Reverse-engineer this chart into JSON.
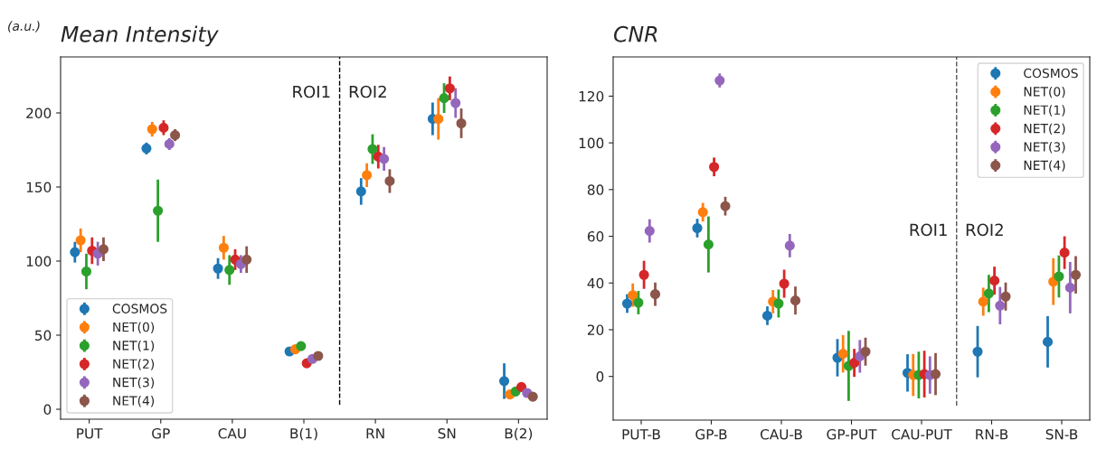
{
  "chart_data": [
    {
      "type": "scatter",
      "title": "Mean Intensity",
      "ylabel": "(a.u.)",
      "categories": [
        "PUT",
        "GP",
        "CAU",
        "B(1)",
        "RN",
        "SN",
        "B(2)"
      ],
      "ylim": [
        -6.7,
        237.8
      ],
      "yticks": [
        0,
        50,
        100,
        150,
        200
      ],
      "marker": "circle",
      "legend": "bottom left",
      "grid": false,
      "annotations": [
        "ROI1",
        "ROI2"
      ],
      "series": [
        {
          "name": "COSMOS",
          "color": "#1f77b4",
          "values": [
            106,
            176,
            95,
            39,
            147,
            196,
            19
          ],
          "errors": [
            7,
            4,
            7,
            2,
            9,
            11,
            12
          ]
        },
        {
          "name": "NET(0)",
          "color": "#ff7f0e",
          "values": [
            114,
            189,
            109,
            40.5,
            158,
            196,
            10
          ],
          "errors": [
            8,
            5,
            8,
            2,
            8,
            14,
            2
          ]
        },
        {
          "name": "NET(1)",
          "color": "#2ca02c",
          "values": [
            93,
            134,
            94,
            42.6,
            175.6,
            210,
            12
          ],
          "errors": [
            12,
            21,
            10,
            2,
            10,
            10,
            2
          ]
        },
        {
          "name": "NET(2)",
          "color": "#d62728",
          "values": [
            107,
            190,
            101,
            31,
            170.5,
            216.6,
            15
          ],
          "errors": [
            9,
            5,
            7,
            2,
            8,
            8,
            2
          ]
        },
        {
          "name": "NET(3)",
          "color": "#9467bd",
          "values": [
            105,
            179,
            98,
            34,
            169,
            206.7,
            11
          ],
          "errors": [
            8,
            4,
            6,
            2,
            8,
            10,
            2
          ]
        },
        {
          "name": "NET(4)",
          "color": "#8c564b",
          "values": [
            108,
            185,
            101,
            36,
            154,
            193,
            8.5
          ],
          "errors": [
            8,
            4,
            9,
            2,
            8,
            10,
            2
          ]
        }
      ]
    },
    {
      "type": "scatter",
      "title": "CNR",
      "categories": [
        "PUT-B",
        "GP-B",
        "CAU-B",
        "GP-PUT",
        "CAU-PUT",
        "RN-B",
        "SN-B"
      ],
      "ylim": [
        -18.7,
        136.8
      ],
      "yticks": [
        0,
        20,
        40,
        60,
        80,
        100,
        120
      ],
      "marker": "circle",
      "legend": "top right",
      "grid": false,
      "annotations": [
        "ROI1",
        "ROI2"
      ],
      "series": [
        {
          "name": "COSMOS",
          "color": "#1f77b4",
          "values": [
            31.2,
            63.5,
            26,
            8,
            1.5,
            10.6,
            14.8
          ],
          "errors": [
            4,
            4,
            4,
            8,
            8,
            11,
            11
          ]
        },
        {
          "name": "NET(0)",
          "color": "#ff7f0e",
          "values": [
            34.8,
            70.3,
            32,
            9.7,
            0.6,
            32,
            40.6
          ],
          "errors": [
            5,
            4,
            5,
            8,
            9,
            6,
            10
          ]
        },
        {
          "name": "NET(1)",
          "color": "#2ca02c",
          "values": [
            31.6,
            56.5,
            31.2,
            4.5,
            0.6,
            35.5,
            42.8
          ],
          "errors": [
            5,
            12,
            6,
            15,
            10,
            8,
            9
          ]
        },
        {
          "name": "NET(2)",
          "color": "#d62728",
          "values": [
            43.5,
            89.7,
            39.7,
            5.8,
            1,
            41,
            53
          ],
          "errors": [
            6,
            4,
            6,
            6,
            10,
            6,
            7
          ]
        },
        {
          "name": "NET(3)",
          "color": "#9467bd",
          "values": [
            62.3,
            126.7,
            56,
            8.6,
            0.6,
            30.3,
            38
          ],
          "errors": [
            5,
            3,
            5,
            7,
            8,
            8,
            11
          ]
        },
        {
          "name": "NET(4)",
          "color": "#8c564b",
          "values": [
            35.2,
            72.9,
            32.5,
            10.6,
            1,
            34.2,
            43.5
          ],
          "errors": [
            5,
            4,
            6,
            6,
            9,
            6,
            8
          ]
        }
      ]
    }
  ]
}
